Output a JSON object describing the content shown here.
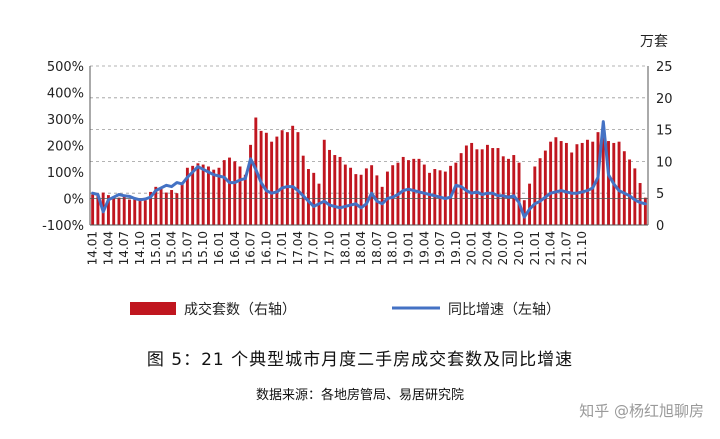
{
  "caption": "图 5：21 个典型城市月度二手房成交套数及同比增速",
  "source": "数据来源：各地房管局、易居研究院",
  "watermark": "知乎 @杨红旭聊房",
  "chart_data": {
    "type": "bar+line",
    "right_axis_unit": "万套",
    "left_axis": {
      "min": -100,
      "max": 500,
      "ticks": [
        "-100%",
        "0%",
        "100%",
        "200%",
        "300%",
        "400%",
        "500%"
      ]
    },
    "right_axis": {
      "min": 0,
      "max": 25,
      "ticks": [
        "0",
        "5",
        "10",
        "15",
        "20",
        "25"
      ]
    },
    "grid": true,
    "legend_position": "bottom",
    "x_tick_labels": [
      "14.01",
      "14.04",
      "14.07",
      "14.10",
      "15.01",
      "15.04",
      "15.07",
      "15.10",
      "16.01",
      "16.04",
      "16.07",
      "16.10",
      "17.01",
      "17.04",
      "17.07",
      "17.10",
      "18.01",
      "18.04",
      "18.07",
      "18.10",
      "19.01",
      "19.04",
      "19.07",
      "19.10",
      "20.01",
      "20.04",
      "20.07",
      "20.10",
      "21.01",
      "21.04",
      "21.07",
      "21.10"
    ],
    "colors": {
      "bar": "#c0161f",
      "line": "#4472c4",
      "grid": "#9a9a9a",
      "axis": "#555555"
    },
    "series": [
      {
        "name": "成交套数（右轴）",
        "axis": "right",
        "kind": "bar",
        "values": [
          4.8,
          4.6,
          5.1,
          4.7,
          4.5,
          4.3,
          4.4,
          4.0,
          4.2,
          4.2,
          3.9,
          5.2,
          6.0,
          5.7,
          5.1,
          5.5,
          5.0,
          6.7,
          9.0,
          9.3,
          9.7,
          9.5,
          9.2,
          8.7,
          9.0,
          10.2,
          10.6,
          10.0,
          9.2,
          7.9,
          12.6,
          16.9,
          14.8,
          14.5,
          13.1,
          13.9,
          14.9,
          14.6,
          15.6,
          14.6,
          10.9,
          8.8,
          8.2,
          6.5,
          13.4,
          11.8,
          11.0,
          10.7,
          9.5,
          9.0,
          8.0,
          7.9,
          8.9,
          9.4,
          7.8,
          6.0,
          8.4,
          9.4,
          9.8,
          10.7,
          10.2,
          10.4,
          10.4,
          9.5,
          8.2,
          8.8,
          8.6,
          8.4,
          9.3,
          9.8,
          11.3,
          12.5,
          12.9,
          11.9,
          11.9,
          12.6,
          12.1,
          12.1,
          10.8,
          10.4,
          11.0,
          9.8,
          3.9,
          6.5,
          9.2,
          10.5,
          11.7,
          13.1,
          13.8,
          13.2,
          12.9,
          11.4,
          12.7,
          12.9,
          13.4,
          13.1,
          14.6,
          14.1,
          13.2,
          12.9,
          13.1,
          11.6,
          10.3,
          8.9,
          6.6,
          4.3
        ]
      },
      {
        "name": "同比增速（左轴）",
        "axis": "left",
        "kind": "line",
        "values": [
          20,
          15,
          -50,
          -5,
          5,
          15,
          10,
          8,
          0,
          -5,
          -2,
          5,
          30,
          40,
          50,
          45,
          60,
          55,
          80,
          100,
          120,
          110,
          100,
          90,
          85,
          80,
          60,
          60,
          70,
          75,
          150,
          110,
          60,
          30,
          20,
          25,
          40,
          45,
          45,
          30,
          10,
          -10,
          -30,
          -20,
          -10,
          -25,
          -30,
          -35,
          -30,
          -25,
          -20,
          -35,
          -20,
          20,
          -10,
          -20,
          0,
          5,
          15,
          30,
          35,
          30,
          25,
          20,
          15,
          10,
          5,
          0,
          5,
          50,
          45,
          30,
          20,
          25,
          15,
          20,
          20,
          10,
          10,
          5,
          10,
          -15,
          -70,
          -40,
          -20,
          -10,
          5,
          20,
          25,
          30,
          25,
          20,
          20,
          25,
          30,
          40,
          80,
          290,
          90,
          55,
          30,
          20,
          10,
          -5,
          -15,
          -20
        ]
      }
    ]
  }
}
